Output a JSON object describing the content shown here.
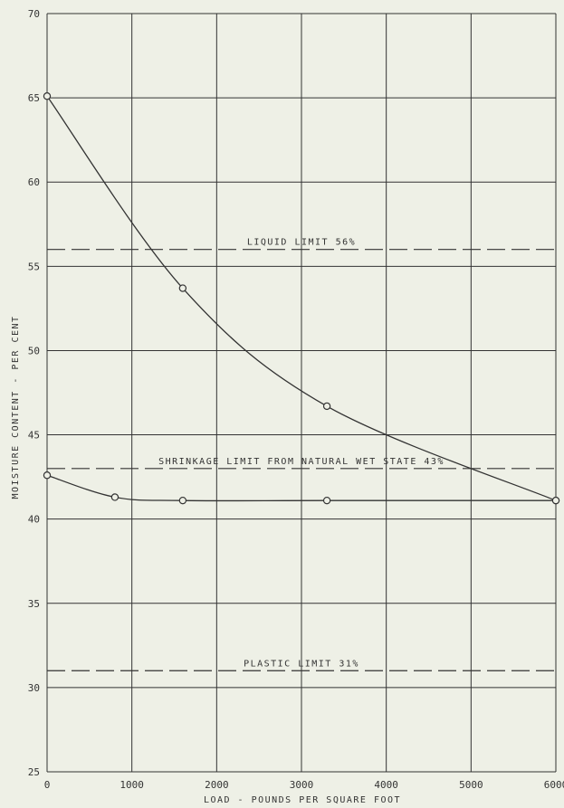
{
  "chart_data": {
    "type": "line",
    "title": "",
    "xlabel": "LOAD - POUNDS PER SQUARE FOOT",
    "ylabel": "MOISTURE CONTENT - PER CENT",
    "xlim": [
      0,
      6000
    ],
    "ylim": [
      25,
      70
    ],
    "x_ticks": [
      0,
      1000,
      2000,
      3000,
      4000,
      5000,
      6000
    ],
    "y_ticks": [
      25,
      30,
      35,
      40,
      45,
      50,
      55,
      60,
      65,
      70
    ],
    "y_tick_labels": [
      "25",
      "30",
      "35",
      "40",
      "45",
      "50",
      "55",
      "60",
      "65",
      "70"
    ],
    "grid": true,
    "legend": "none",
    "series": [
      {
        "x": [
          0,
          1600,
          3300,
          6000
        ],
        "y": [
          65.1,
          53.7,
          46.7,
          41.1
        ]
      },
      {
        "x": [
          0,
          800,
          1600,
          3300,
          6000
        ],
        "y": [
          42.6,
          41.3,
          41.1,
          41.1,
          41.1
        ]
      }
    ],
    "reference_lines": [
      {
        "label": "LIQUID LIMIT 56%",
        "y": 56
      },
      {
        "label": "SHRINKAGE LIMIT FROM NATURAL WET STATE 43%",
        "y": 43
      },
      {
        "label": "PLASTIC LIMIT 31%",
        "y": 31
      }
    ],
    "colors": {
      "background": "#eef0e6",
      "ink": "#333333"
    }
  }
}
